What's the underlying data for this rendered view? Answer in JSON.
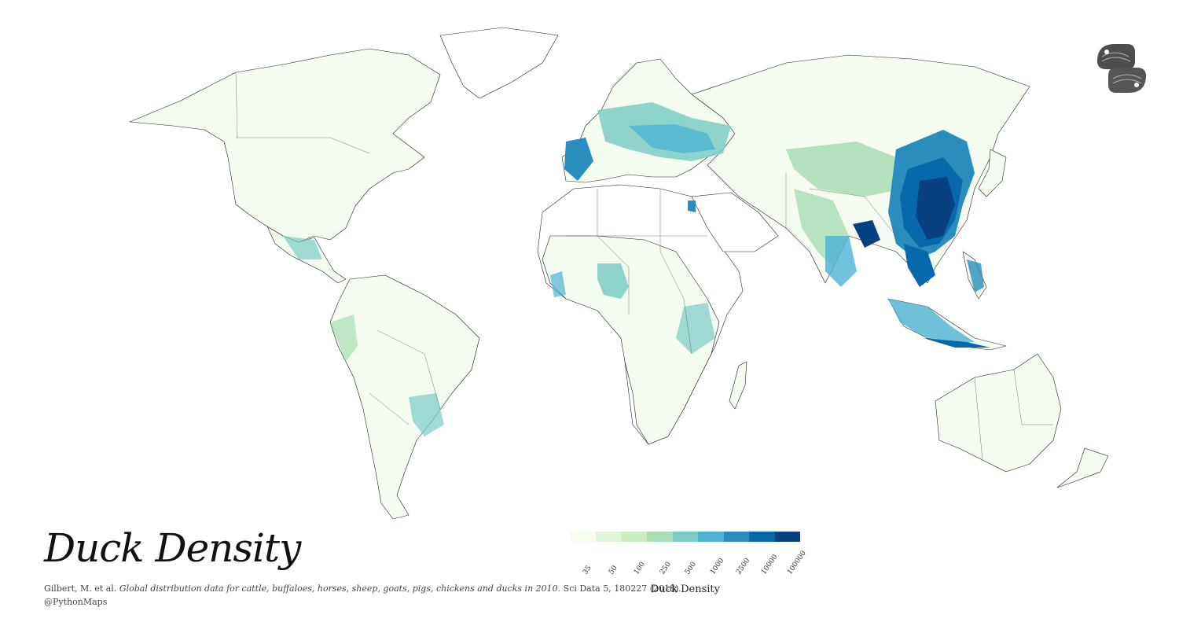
{
  "title": "Duck Density",
  "citation": {
    "before": "Gilbert, M. et al. ",
    "italic": "Global distribution data for cattle, buffaloes, horses, sheep, goats, pigs, chickens and ducks in 2010.",
    "after": " Sci Data 5, 180227 (2018)."
  },
  "handle": "@PythonMaps",
  "legend": {
    "label": "Duck Density",
    "ticks": [
      "35",
      "50",
      "100",
      "250",
      "500",
      "1000",
      "2500",
      "10000",
      "100000"
    ],
    "colors": [
      "#f7fcf0",
      "#e0f3db",
      "#ccebc5",
      "#a8ddb5",
      "#7bccc4",
      "#4eb3d3",
      "#2b8cbe",
      "#0868ac",
      "#084081"
    ]
  },
  "colors": {
    "land_base": "#f4fbf0",
    "no_data": "#ffffff",
    "coastline": "#222222"
  },
  "logo_icon": "python-maps-logo-icon"
}
